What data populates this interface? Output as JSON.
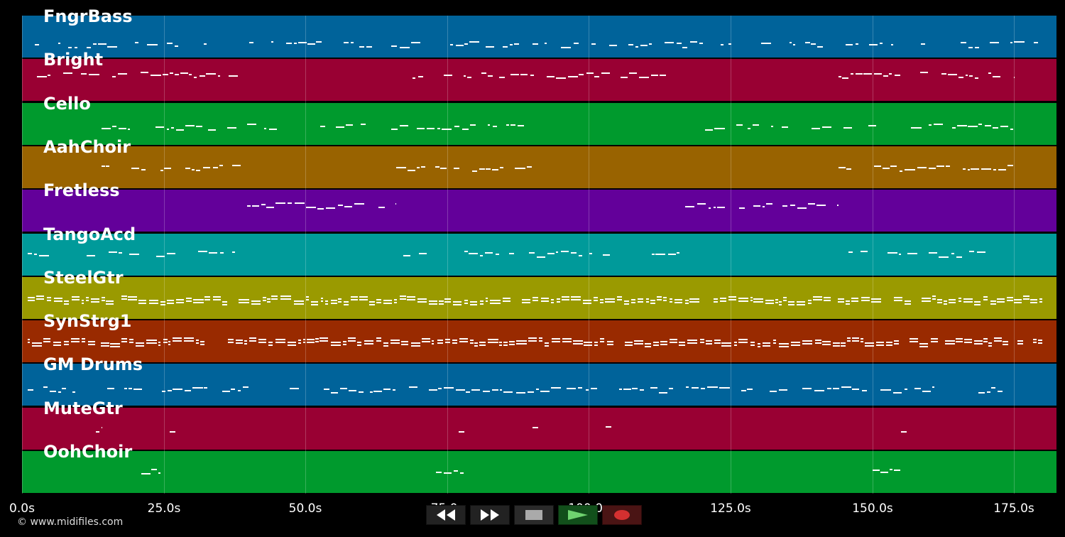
{
  "tracks": [
    {
      "name": "FngrBass",
      "color": "#00639a"
    },
    {
      "name": "Bright",
      "color": "#990033"
    },
    {
      "name": "Cello",
      "color": "#009a2d"
    },
    {
      "name": "AahChoir",
      "color": "#996300"
    },
    {
      "name": "Fretless",
      "color": "#63009a"
    },
    {
      "name": "TangoAcd",
      "color": "#009a9a"
    },
    {
      "name": "SteelGtr",
      "color": "#9a9a00"
    },
    {
      "name": "SynStrg1",
      "color": "#992a00"
    },
    {
      "name": "GM Drums",
      "color": "#00639a"
    },
    {
      "name": "MuteGtr",
      "color": "#990033"
    },
    {
      "name": "OohChoir",
      "color": "#009a2d"
    }
  ],
  "timeline": {
    "ticks": [
      "0.0s",
      "25.0s",
      "50.0s",
      "75.0s",
      "100.0s",
      "125.0s",
      "150.0s",
      "175.0s"
    ],
    "range_seconds": [
      0,
      182.5
    ]
  },
  "copyright": "© www.midifiles.com",
  "transport": {
    "rewind": "rewind-icon",
    "fast_forward": "fast-forward-icon",
    "stop": "stop-icon",
    "play": "play-icon",
    "record": "record-icon"
  }
}
